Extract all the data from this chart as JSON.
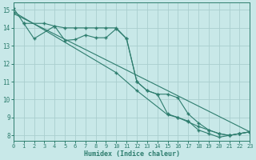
{
  "xlabel": "Humidex (Indice chaleur)",
  "xlim": [
    0,
    23
  ],
  "ylim": [
    7.7,
    15.4
  ],
  "xticks": [
    0,
    1,
    2,
    3,
    4,
    5,
    6,
    7,
    8,
    9,
    10,
    11,
    12,
    13,
    14,
    15,
    16,
    17,
    18,
    19,
    20,
    21,
    22,
    23
  ],
  "yticks": [
    8,
    9,
    10,
    11,
    12,
    13,
    14,
    15
  ],
  "background_color": "#c8e8e8",
  "grid_color": "#aacece",
  "line_color": "#2e7d6e",
  "series": [
    {
      "x": [
        0,
        1,
        3,
        4,
        5,
        6,
        7,
        8,
        9,
        10,
        11,
        12,
        13,
        14,
        15,
        16,
        17,
        18,
        19,
        20,
        21,
        22,
        23
      ],
      "y": [
        15.1,
        14.25,
        14.25,
        14.1,
        14.0,
        14.0,
        14.0,
        14.0,
        14.0,
        14.0,
        13.4,
        11.0,
        10.5,
        10.3,
        9.2,
        9.0,
        8.8,
        8.3,
        8.1,
        7.9,
        8.0,
        8.1,
        8.2
      ]
    },
    {
      "x": [
        1,
        2,
        4,
        5,
        6,
        7,
        8,
        9,
        10,
        11,
        12,
        13,
        14,
        15,
        16,
        17,
        18,
        19,
        20,
        21,
        22,
        23
      ],
      "y": [
        14.25,
        13.4,
        14.1,
        13.3,
        13.35,
        13.6,
        13.45,
        13.45,
        13.95,
        13.4,
        11.0,
        10.5,
        10.3,
        10.3,
        10.1,
        9.2,
        8.7,
        8.3,
        8.1,
        8.0,
        8.1,
        8.2
      ]
    },
    {
      "x": [
        0,
        23
      ],
      "y": [
        14.8,
        8.2
      ]
    },
    {
      "x": [
        0,
        10,
        12,
        15,
        16,
        17,
        18,
        19,
        20,
        21,
        22,
        23
      ],
      "y": [
        14.9,
        11.5,
        10.5,
        9.15,
        9.0,
        8.75,
        8.5,
        8.3,
        8.1,
        8.0,
        8.1,
        8.2
      ]
    }
  ]
}
